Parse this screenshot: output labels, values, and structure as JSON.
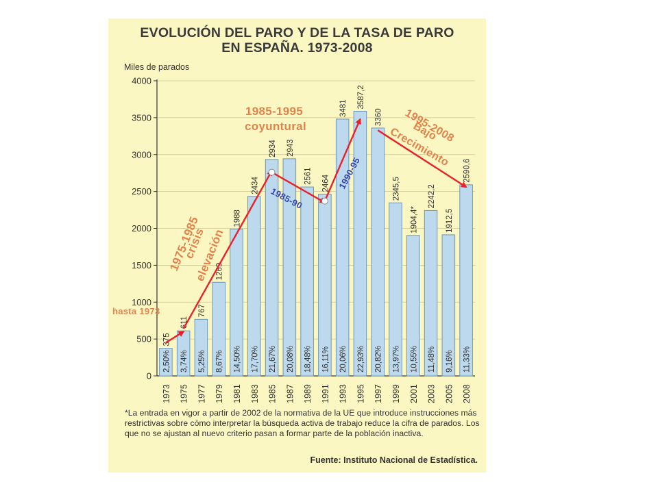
{
  "chart_data": {
    "type": "bar",
    "title": "EVOLUCIÓN DEL PARO Y DE LA TASA DE PARO",
    "subtitle": "EN ESPAÑA. 1973-2008",
    "ylabel": "Miles de parados",
    "ylim": [
      0,
      4000
    ],
    "yticks": [
      "0",
      "500",
      "1000",
      "1500",
      "2000",
      "2500",
      "3000",
      "3500",
      "4000"
    ],
    "grid": true,
    "categories": [
      "1973",
      "1975",
      "1977",
      "1979",
      "1981",
      "1983",
      "1985",
      "1987",
      "1989",
      "1991",
      "1993",
      "1995",
      "1997",
      "1999",
      "2001",
      "2003",
      "2005",
      "2008"
    ],
    "values": [
      375,
      611,
      767,
      1269,
      1988,
      2434,
      2934,
      2943,
      2561,
      2464,
      3481,
      3587.2,
      3360,
      2345.5,
      1904.4,
      2242.2,
      1912.5,
      2590.6
    ],
    "value_labels": [
      "375",
      "611",
      "767",
      "1269",
      "1988",
      "2434",
      "2934",
      "2943",
      "2561",
      "2464",
      "3481",
      "3587,2",
      "3360",
      "2345,5",
      "1904,4*",
      "2242,2",
      "1912,5",
      "2590,6"
    ],
    "rate_labels": [
      "2,50%",
      "3,74%",
      "5,25%",
      "8,67%",
      "14,50%",
      "17,70%",
      "21,67%",
      "20,08%",
      "18,48%",
      "16,11%",
      "20,06%",
      "22,93%",
      "20,82%",
      "13,97%",
      "10,55%",
      "11,48%",
      "9,16%",
      "11,33%"
    ],
    "annotations": [
      {
        "text": "hasta 1973",
        "color": "#e0834c"
      },
      {
        "text": "1975-1985",
        "color": "#e0834c"
      },
      {
        "text": "crisis",
        "color": "#e0834c"
      },
      {
        "text": "elevación",
        "color": "#e0834c"
      },
      {
        "text": "1985-1995",
        "color": "#e0834c"
      },
      {
        "text": "coyuntural",
        "color": "#e0834c"
      },
      {
        "text": "1985-90",
        "color": "#3344aa"
      },
      {
        "text": "1990-95",
        "color": "#3344aa"
      },
      {
        "text": "1995-2008",
        "color": "#e0834c"
      },
      {
        "text": "Bajo",
        "color": "#e0834c"
      },
      {
        "text": "Crecimiento",
        "color": "#e0834c"
      }
    ],
    "trend_arrows": [
      {
        "from": [
          "1973",
          450
        ],
        "to": [
          "1975",
          600
        ]
      },
      {
        "from": [
          "1975",
          640
        ],
        "to": [
          "1985",
          2780
        ]
      },
      {
        "from": [
          "1985",
          2760
        ],
        "to": [
          "1991",
          2350
        ]
      },
      {
        "from": [
          "1991",
          2370
        ],
        "to": [
          "1995",
          3480
        ]
      },
      {
        "from": [
          "1997",
          3330
        ],
        "to": [
          "2008",
          2560
        ]
      }
    ],
    "colors": {
      "bar_fill": "#bcd9ee",
      "bar_stroke": "#6f96b8",
      "arrow": "#e8212b",
      "panel": "#fbf7c2"
    }
  },
  "footnote": "*La entrada en vigor a partir de 2002 de la normativa de la UE que introduce instrucciones más restrictivas sobre cómo interpretar la búsqueda activa de trabajo reduce la cifra de parados. Los que no se ajustan al nuevo criterio pasan a formar parte de la población inactiva.",
  "source": "Fuente: Instituto Nacional de Estadística."
}
